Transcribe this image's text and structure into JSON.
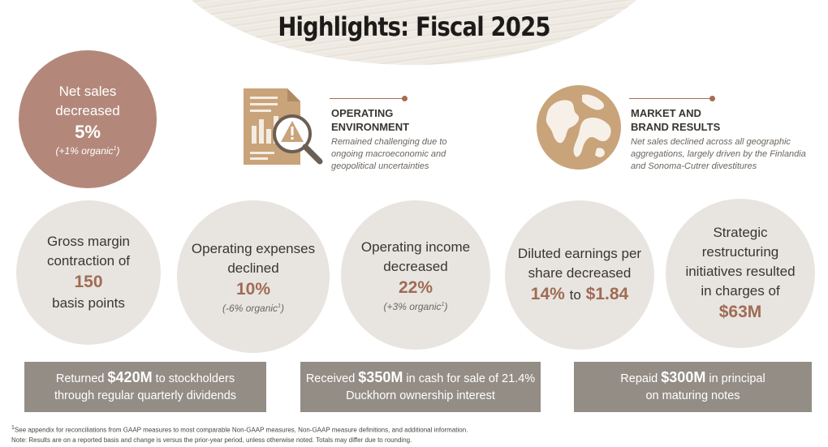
{
  "title": "Highlights: Fiscal 2025",
  "net_sales": {
    "line1": "Net sales",
    "line2": "decreased",
    "value": "5%",
    "note_pre": "(+1% organic",
    "note_sup": "1",
    "note_post": ")"
  },
  "operating_environment": {
    "icon": "document-chart-warning-icon",
    "heading_line1": "OPERATING",
    "heading_line2": "ENVIRONMENT",
    "desc_line1": "Remained challenging due to",
    "desc_line2": "ongoing macroeconomic and",
    "desc_line3": "geopolitical uncertainties"
  },
  "market_brand": {
    "icon": "globe-icon",
    "heading_line1": "MARKET AND",
    "heading_line2": "BRAND RESULTS",
    "desc_line1": "Net sales declined across all geographic",
    "desc_line2": "aggregations, largely driven by the Finlandia",
    "desc_line3": "and Sonoma-Cutrer divestitures"
  },
  "gross_margin": {
    "line1": "Gross margin",
    "line2": "contraction of",
    "value": "150",
    "line3": "basis points"
  },
  "operating_expenses": {
    "line1": "Operating expenses",
    "line2": "declined",
    "value": "10%",
    "note_pre": "(-6% organic",
    "note_sup": "1",
    "note_post": ")"
  },
  "operating_income": {
    "line1": "Operating income",
    "line2": "decreased",
    "value": "22%",
    "note_pre": "(+3% organic",
    "note_sup": "1",
    "note_post": ")"
  },
  "diluted_eps": {
    "line1": "Diluted earnings per",
    "line2": "share decreased",
    "value1": "14%",
    "connector": "to",
    "value2": "$1.84"
  },
  "restructuring": {
    "line1": "Strategic",
    "line2": "restructuring",
    "line3": "initiatives resulted",
    "line4": "in charges of",
    "value": "$63M"
  },
  "banners": [
    {
      "pre": "Returned",
      "amount": "$420M",
      "post": "to stockholders",
      "line2": "through regular quarterly dividends"
    },
    {
      "pre": "Received",
      "amount": "$350M",
      "post": "in cash for sale of 21.4%",
      "line2": "Duckhorn ownership interest"
    },
    {
      "pre": "Repaid",
      "amount": "$300M",
      "post": "in principal",
      "line2": "on maturing notes"
    }
  ],
  "footnote": {
    "sup": "1",
    "line1": "See appendix for reconciliations from GAAP measures to most comparable Non-GAAP measures, Non-GAAP measure definitions,  and additional information.",
    "line2": "Note: Results are on a reported basis and change is versus the prior-year period, unless otherwise noted. Totals may differ due to rounding."
  },
  "colors": {
    "accent": "#a06b55",
    "net_sales_circle": "#b3887a",
    "circle": "#e8e5e0",
    "banner": "#938d86",
    "icon_gold": "#c9a37a"
  }
}
